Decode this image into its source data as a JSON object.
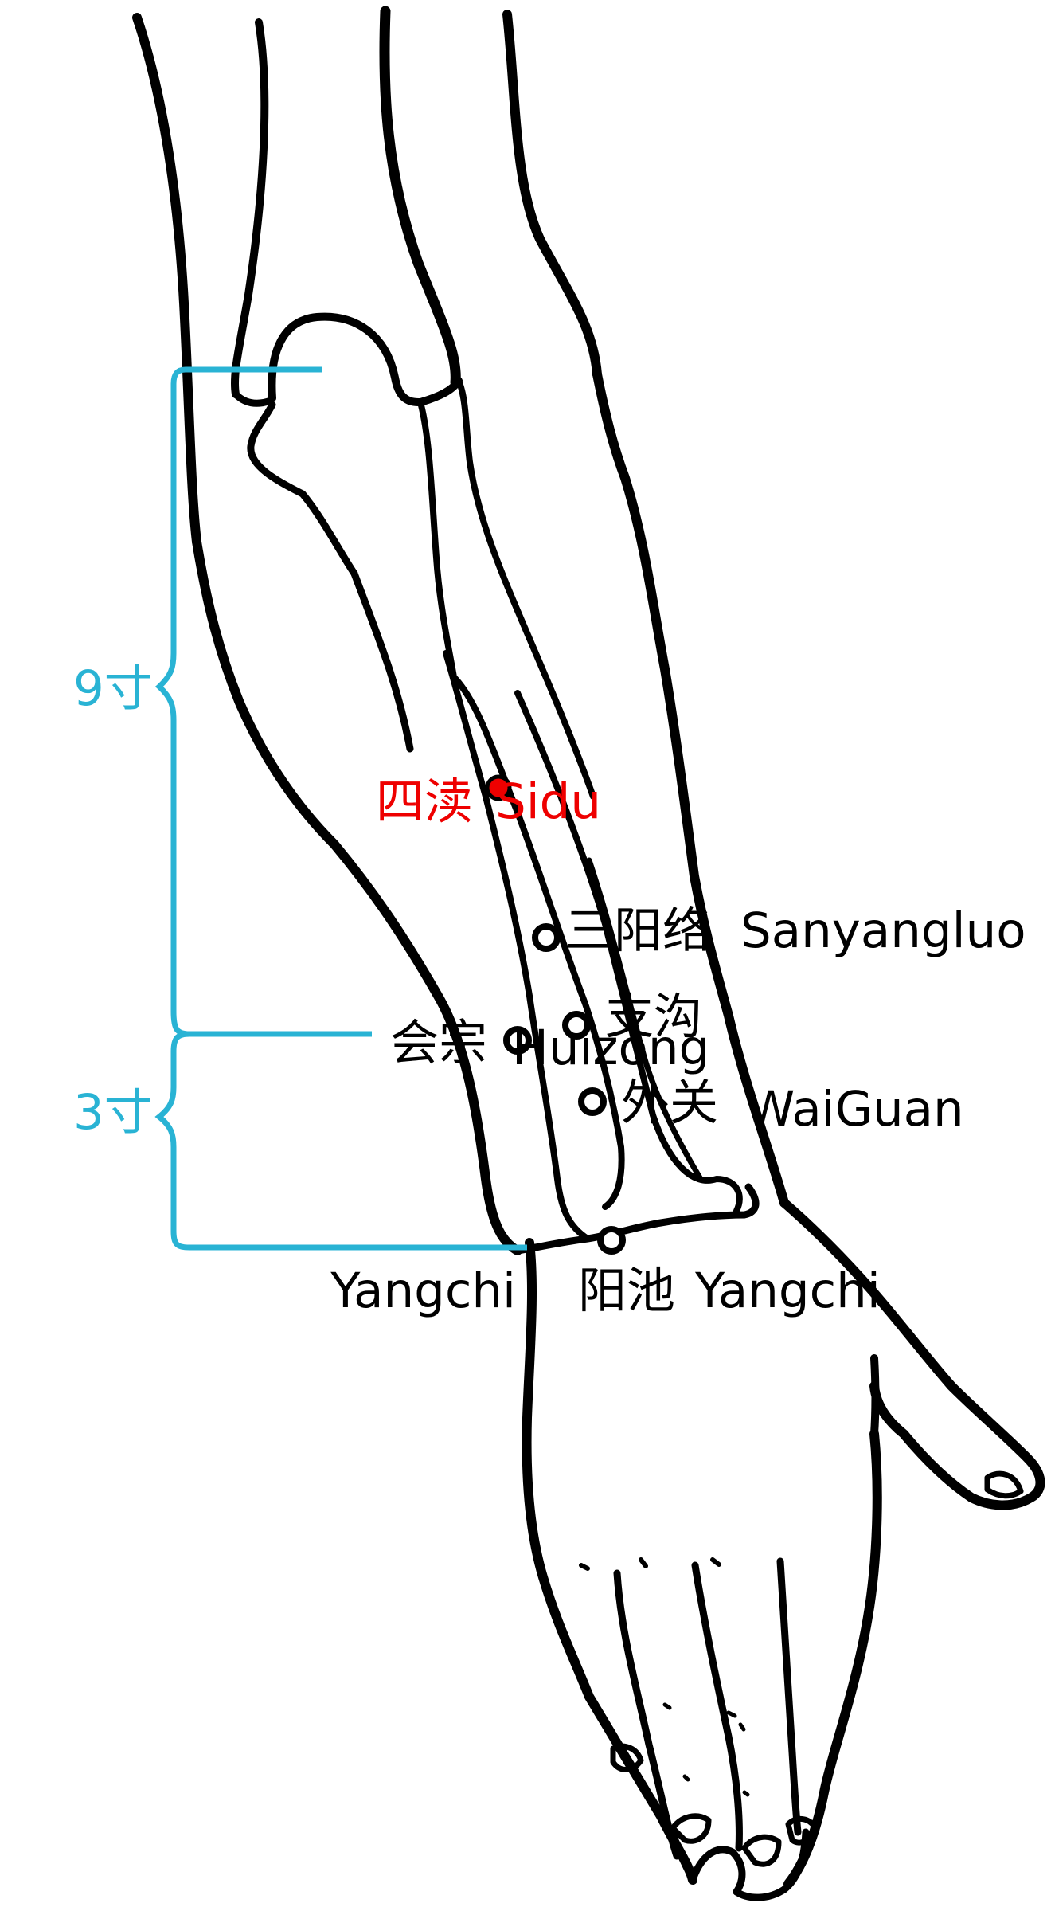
{
  "colors": {
    "outline": "#000000",
    "measure": "#29b3d4",
    "highlight": "#ee0000",
    "point_fill": "#ffffff"
  },
  "measurements": {
    "upper": "9寸",
    "lower": "3寸"
  },
  "points": {
    "sidu": {
      "zh": "四渎",
      "en": "Sidu",
      "highlight": true
    },
    "sanyangluo": {
      "zh": "三阳络",
      "en": "Sanyangluo"
    },
    "zhigou": {
      "zh": "支沟"
    },
    "huizong": {
      "zh": "会宗",
      "en": "Huizong"
    },
    "waiguan": {
      "zh": "外关",
      "en": "WaiGuan"
    },
    "yangchi": {
      "zh": "阳池",
      "en": "Yangchi"
    }
  },
  "left_label": "Yangchi"
}
